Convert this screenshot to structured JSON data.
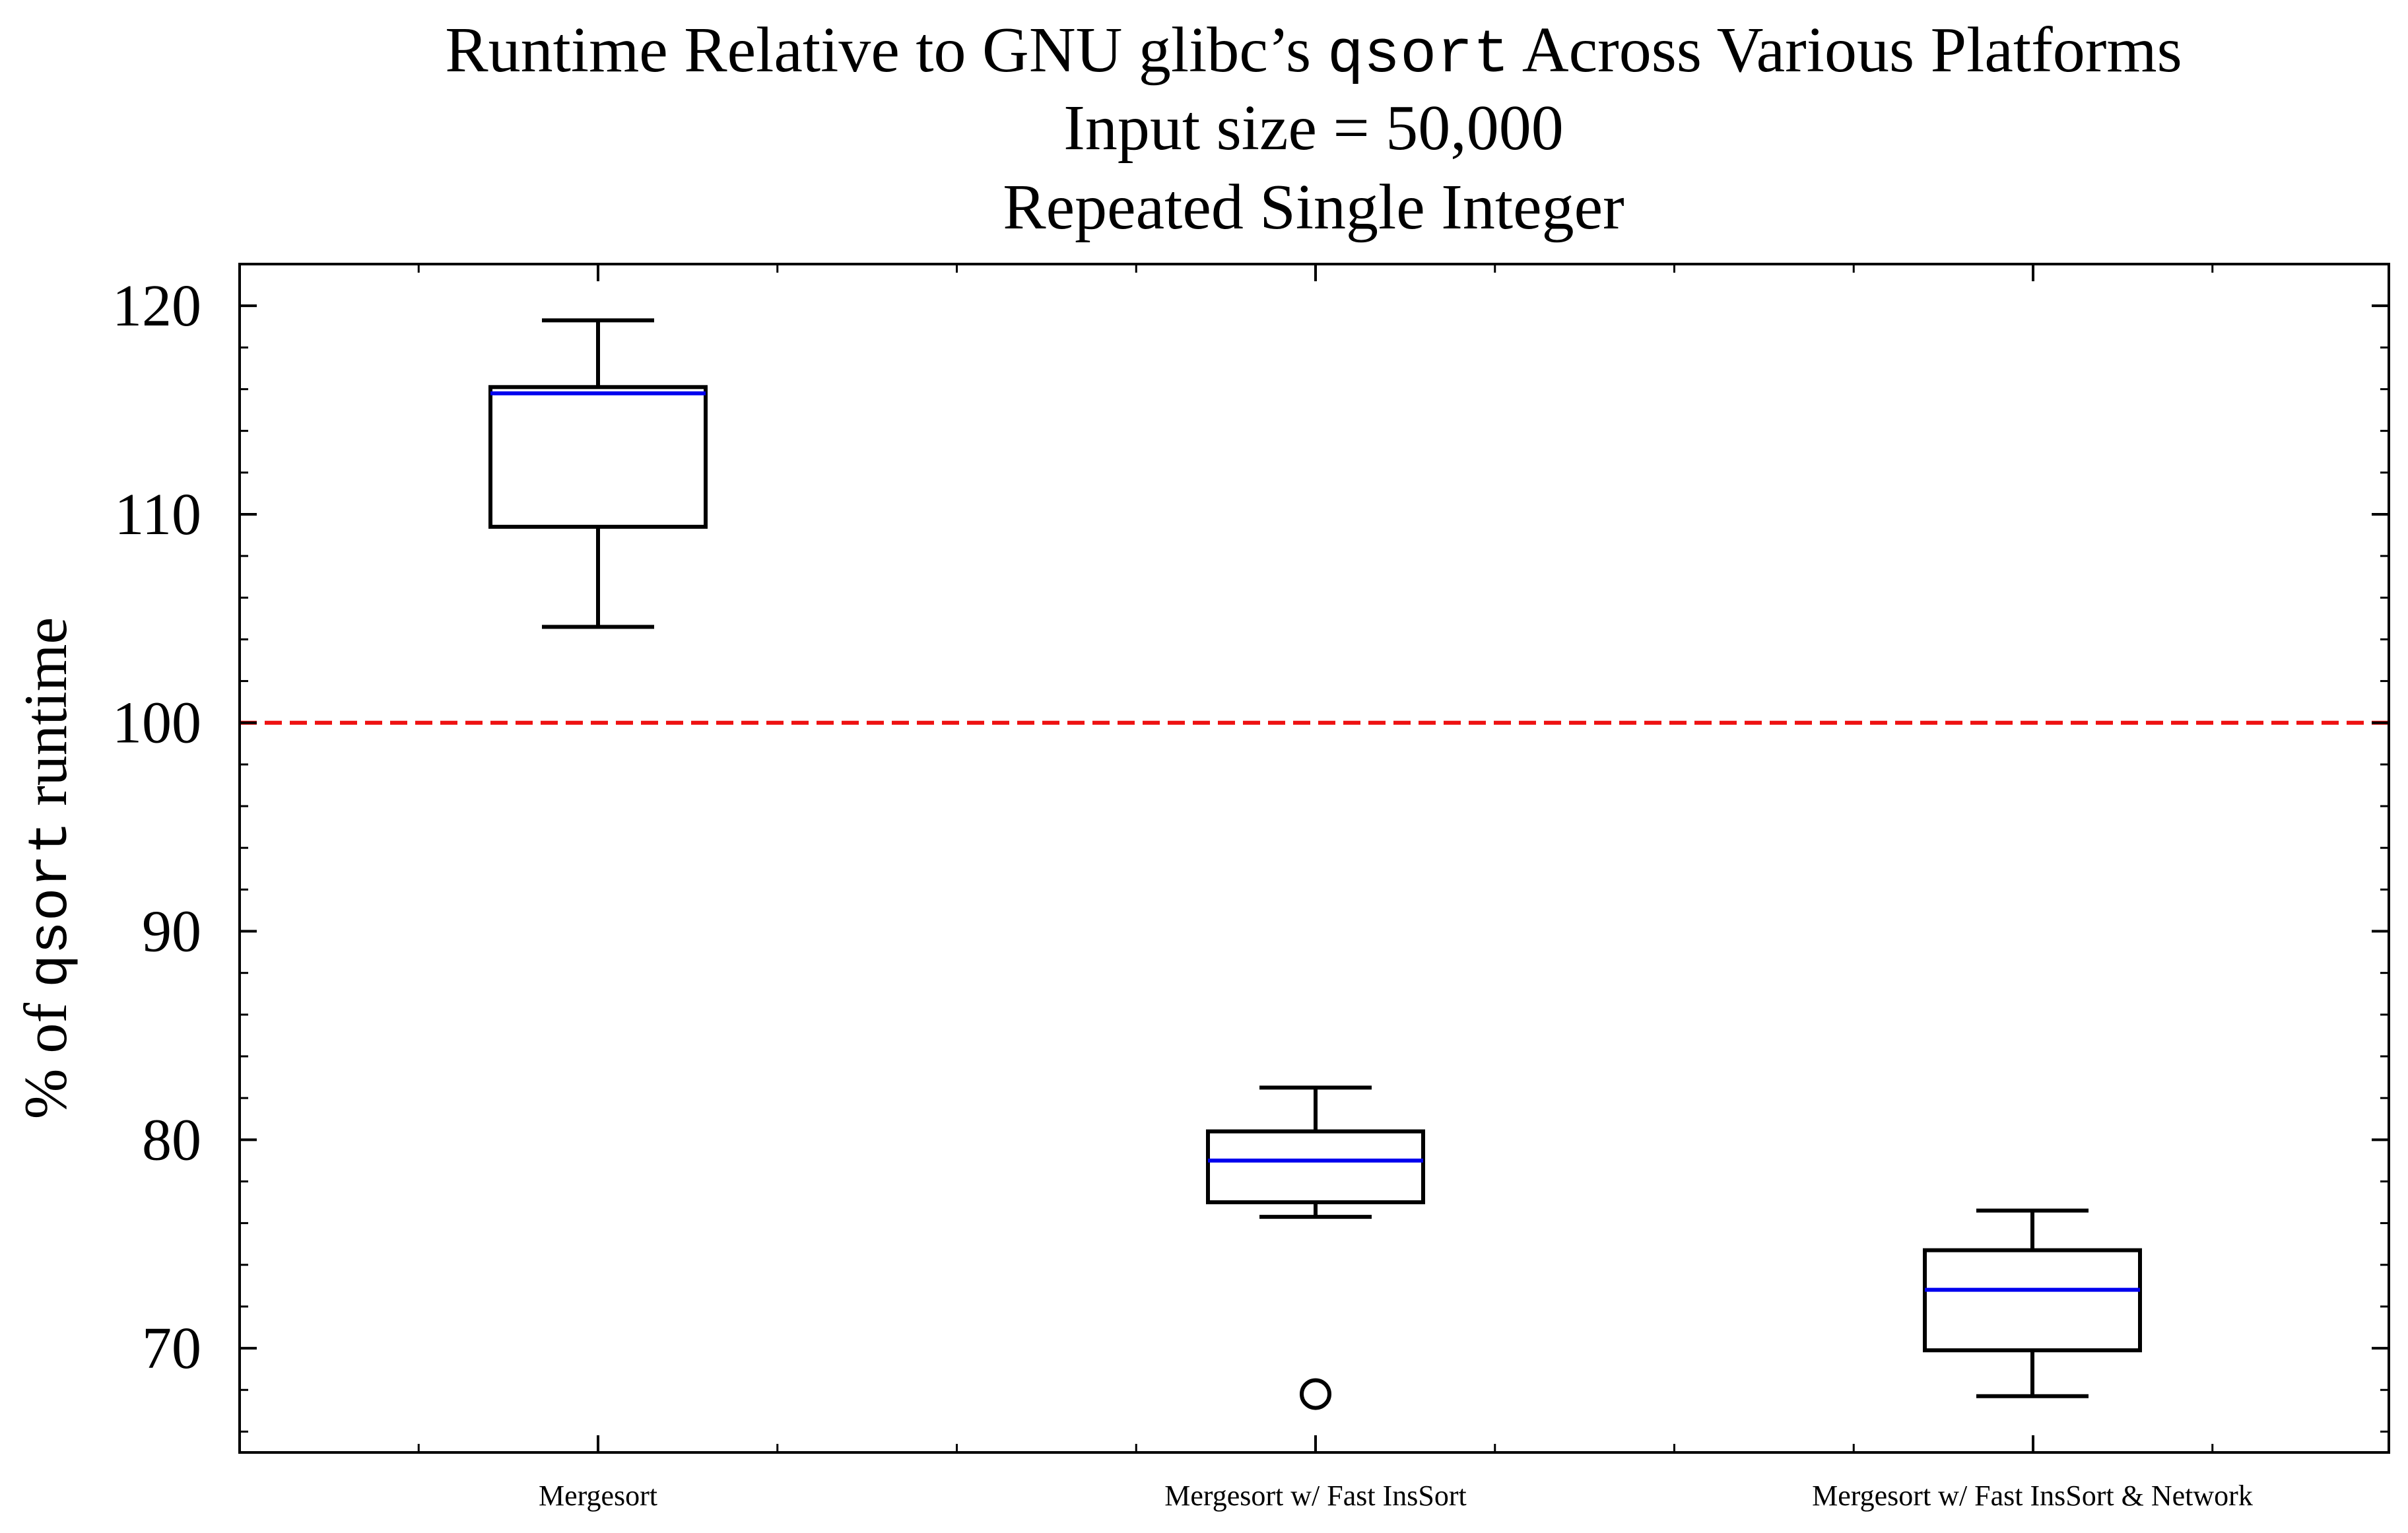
{
  "chart_data": {
    "type": "box",
    "title": {
      "line1_prefix": "Runtime Relative to GNU glibc’s ",
      "line1_code": "qsort",
      "line1_suffix": " Across Various Platforms",
      "line2": "Input size = 50,000",
      "line3": "Repeated Single Integer"
    },
    "ylabel": {
      "prefix": "% of ",
      "code": "qsort",
      "suffix": " runtime"
    },
    "xlabel": "",
    "ylim": [
      65,
      122
    ],
    "yticks": [
      70,
      80,
      90,
      100,
      110,
      120
    ],
    "reference_line": {
      "value": 100,
      "color": "#ee1111",
      "style": "dashed"
    },
    "median_color": "#0000ee",
    "categories": [
      "Mergesort",
      "Mergesort w/ Fast InsSort",
      "Mergesort w/ Fast InsSort & Network"
    ],
    "boxes": [
      {
        "category": "Mergesort",
        "whisker_low": 104.6,
        "q1": 109.4,
        "median": 115.8,
        "q3": 116.1,
        "whisker_high": 119.3,
        "outliers": []
      },
      {
        "category": "Mergesort w/ Fast InsSort",
        "whisker_low": 76.3,
        "q1": 77.0,
        "median": 79.0,
        "q3": 80.4,
        "whisker_high": 82.5,
        "outliers": [
          67.8
        ]
      },
      {
        "category": "Mergesort w/ Fast InsSort & Network",
        "whisker_low": 67.7,
        "q1": 69.9,
        "median": 72.8,
        "q3": 74.7,
        "whisker_high": 76.6,
        "outliers": []
      }
    ],
    "grid": false,
    "legend": "none"
  }
}
